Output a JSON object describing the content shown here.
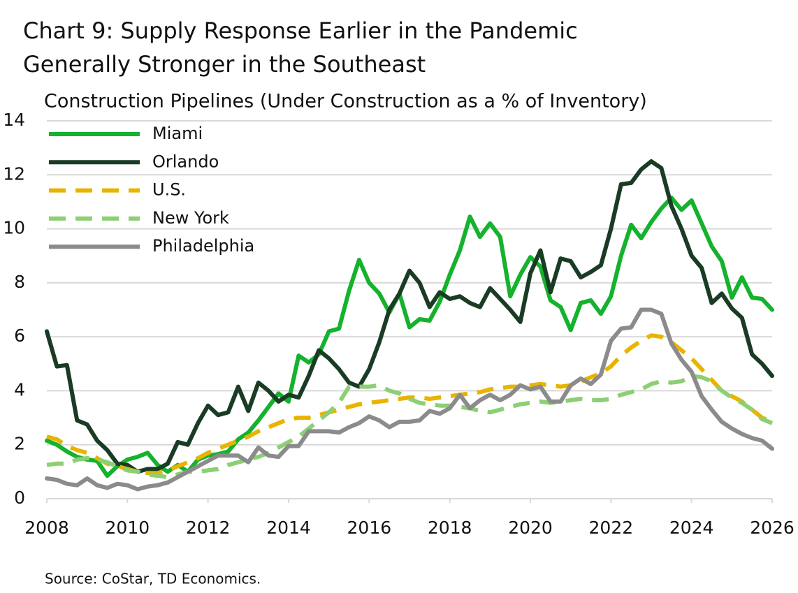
{
  "chart_data": {
    "type": "line",
    "title": [
      "Chart 9: Supply Response Earlier in the Pandemic",
      "Generally Stronger in the Southeast"
    ],
    "subtitle": "Construction Pipelines (Under Construction as a % of Inventory)",
    "source": "Source: CoStar, TD Economics.",
    "x": [
      2008,
      2008.25,
      2008.5,
      2008.75,
      2009,
      2009.25,
      2009.5,
      2009.75,
      2010,
      2010.25,
      2010.5,
      2010.75,
      2011,
      2011.25,
      2011.5,
      2011.75,
      2012,
      2012.25,
      2012.5,
      2012.75,
      2013,
      2013.25,
      2013.5,
      2013.75,
      2014,
      2014.25,
      2014.5,
      2014.75,
      2015,
      2015.25,
      2015.5,
      2015.75,
      2016,
      2016.25,
      2016.5,
      2016.75,
      2017,
      2017.25,
      2017.5,
      2017.75,
      2018,
      2018.25,
      2018.5,
      2018.75,
      2019,
      2019.25,
      2019.5,
      2019.75,
      2020,
      2020.25,
      2020.5,
      2020.75,
      2021,
      2021.25,
      2021.5,
      2021.75,
      2022,
      2022.25,
      2022.5,
      2022.75,
      2023,
      2023.25,
      2023.5,
      2023.75,
      2024,
      2024.25,
      2024.5,
      2024.75,
      2025,
      2025.25,
      2025.5,
      2025.75,
      2026
    ],
    "xlim": [
      2008,
      2026
    ],
    "xticks": [
      2008,
      2010,
      2012,
      2014,
      2016,
      2018,
      2020,
      2022,
      2024,
      2026
    ],
    "ylim": [
      0,
      14
    ],
    "yticks": [
      0,
      2,
      4,
      6,
      8,
      10,
      12,
      14
    ],
    "grid": true,
    "legend": "top-left",
    "series": [
      {
        "name": "Miami",
        "color": "#14b22d",
        "style": "solid",
        "values": [
          2.15,
          2.0,
          1.75,
          1.55,
          1.45,
          1.4,
          0.85,
          1.2,
          1.45,
          1.55,
          1.7,
          1.25,
          1.0,
          1.25,
          1.0,
          1.45,
          1.6,
          1.65,
          1.75,
          2.2,
          2.45,
          2.9,
          3.4,
          3.9,
          3.6,
          5.3,
          5.05,
          5.35,
          6.2,
          6.3,
          7.7,
          8.85,
          8.0,
          7.6,
          6.9,
          7.6,
          6.35,
          6.65,
          6.6,
          7.3,
          8.3,
          9.2,
          10.45,
          9.7,
          10.2,
          9.7,
          7.5,
          8.3,
          8.95,
          8.6,
          7.35,
          7.1,
          6.25,
          7.25,
          7.35,
          6.85,
          7.5,
          9.0,
          10.15,
          9.65,
          10.25,
          10.75,
          11.15,
          10.7,
          11.05,
          10.2,
          9.35,
          8.8,
          7.45,
          8.2,
          7.45,
          7.4,
          7.0
        ]
      },
      {
        "name": "Orlando",
        "color": "#1a3b24",
        "style": "solid",
        "values": [
          6.2,
          4.9,
          4.95,
          2.9,
          2.75,
          2.15,
          1.8,
          1.3,
          1.25,
          1.0,
          1.1,
          1.1,
          1.3,
          2.1,
          2.0,
          2.8,
          3.45,
          3.1,
          3.2,
          4.15,
          3.25,
          4.3,
          4.0,
          3.6,
          3.85,
          3.75,
          4.55,
          5.5,
          5.2,
          4.8,
          4.3,
          4.15,
          4.8,
          5.8,
          7.0,
          7.6,
          8.45,
          8.0,
          7.1,
          7.65,
          7.4,
          7.5,
          7.25,
          7.1,
          7.8,
          7.4,
          7.0,
          6.55,
          8.35,
          9.2,
          7.65,
          8.9,
          8.8,
          8.2,
          8.4,
          8.65,
          10.0,
          11.65,
          11.7,
          12.2,
          12.5,
          12.25,
          10.85,
          10.0,
          9.0,
          8.55,
          7.25,
          7.6,
          7.05,
          6.7,
          5.35,
          5.0,
          4.55
        ]
      },
      {
        "name": "U.S.",
        "color": "#e8b400",
        "style": "dashed",
        "values": [
          2.3,
          2.2,
          1.95,
          1.8,
          1.7,
          1.5,
          1.3,
          1.2,
          1.1,
          1.0,
          0.95,
          0.95,
          1.05,
          1.2,
          1.35,
          1.5,
          1.7,
          1.85,
          2.0,
          2.15,
          2.3,
          2.5,
          2.65,
          2.8,
          2.95,
          3.0,
          3.0,
          3.1,
          3.2,
          3.3,
          3.4,
          3.5,
          3.55,
          3.6,
          3.65,
          3.7,
          3.75,
          3.75,
          3.7,
          3.75,
          3.8,
          3.85,
          3.9,
          3.95,
          4.05,
          4.1,
          4.15,
          4.15,
          4.2,
          4.25,
          4.2,
          4.15,
          4.2,
          4.35,
          4.5,
          4.65,
          4.9,
          5.3,
          5.6,
          5.85,
          6.05,
          6.0,
          5.8,
          5.5,
          5.2,
          4.8,
          4.4,
          4.0,
          3.8,
          3.6,
          3.3,
          3.0,
          2.85
        ]
      },
      {
        "name": "New York",
        "color": "#8ccf74",
        "style": "dashed",
        "values": [
          1.25,
          1.3,
          1.3,
          1.45,
          1.5,
          1.45,
          1.35,
          1.2,
          1.05,
          1.0,
          0.9,
          0.85,
          0.8,
          0.9,
          1.0,
          1.0,
          1.05,
          1.1,
          1.25,
          1.35,
          1.45,
          1.55,
          1.7,
          1.9,
          2.1,
          2.3,
          2.6,
          2.9,
          3.2,
          3.55,
          4.15,
          4.15,
          4.15,
          4.2,
          4.0,
          3.9,
          3.7,
          3.55,
          3.5,
          3.45,
          3.45,
          3.4,
          3.35,
          3.25,
          3.2,
          3.3,
          3.4,
          3.5,
          3.55,
          3.6,
          3.55,
          3.6,
          3.65,
          3.7,
          3.65,
          3.65,
          3.7,
          3.85,
          3.95,
          4.05,
          4.25,
          4.35,
          4.3,
          4.35,
          4.55,
          4.5,
          4.35,
          4.0,
          3.75,
          3.55,
          3.3,
          2.95,
          2.8
        ]
      },
      {
        "name": "Philadelphia",
        "color": "#8b8b8b",
        "style": "solid",
        "values": [
          0.75,
          0.7,
          0.55,
          0.5,
          0.75,
          0.5,
          0.4,
          0.55,
          0.5,
          0.35,
          0.45,
          0.5,
          0.6,
          0.8,
          1.0,
          1.2,
          1.4,
          1.6,
          1.6,
          1.6,
          1.35,
          1.9,
          1.6,
          1.55,
          1.95,
          1.95,
          2.5,
          2.5,
          2.5,
          2.45,
          2.65,
          2.8,
          3.05,
          2.9,
          2.65,
          2.85,
          2.85,
          2.9,
          3.25,
          3.15,
          3.35,
          3.85,
          3.35,
          3.65,
          3.85,
          3.65,
          3.85,
          4.2,
          4.05,
          4.15,
          3.6,
          3.6,
          4.2,
          4.45,
          4.25,
          4.6,
          5.85,
          6.3,
          6.35,
          7.0,
          7.0,
          6.85,
          5.75,
          5.15,
          4.7,
          3.8,
          3.3,
          2.85,
          2.6,
          2.4,
          2.25,
          2.15,
          1.85
        ]
      }
    ]
  }
}
